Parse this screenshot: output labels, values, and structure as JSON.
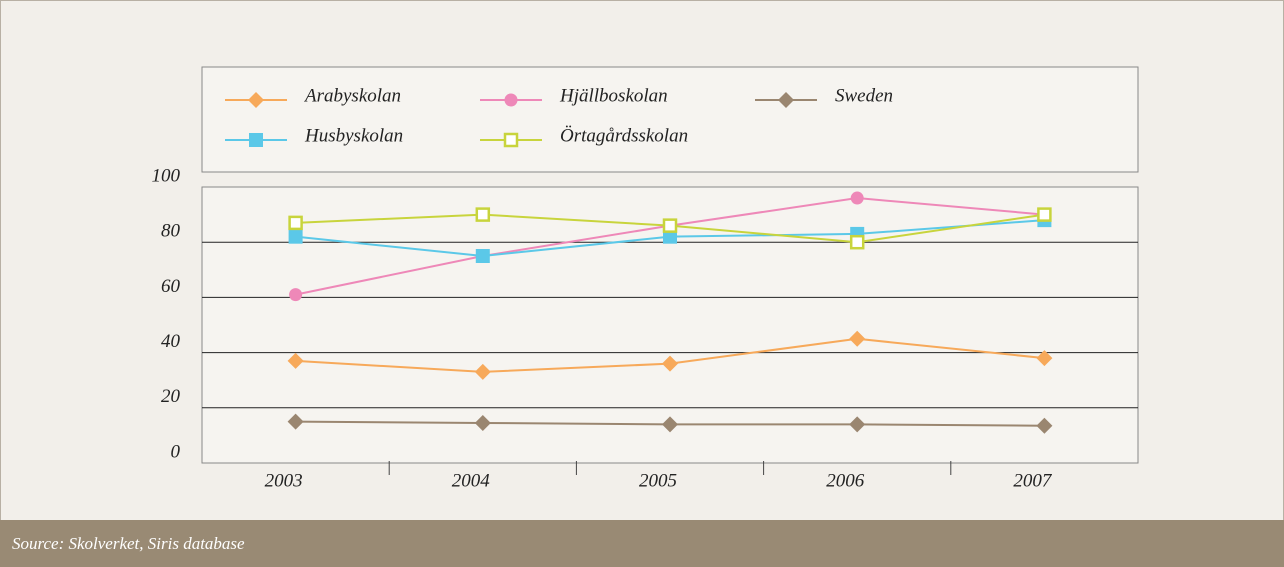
{
  "chart_data": {
    "type": "line",
    "categories": [
      "2003",
      "2004",
      "2005",
      "2006",
      "2007"
    ],
    "series": [
      {
        "name": "Arabyskolan",
        "color": "#f7a95a",
        "marker": "diamond",
        "values": [
          37,
          33,
          36,
          45,
          38
        ]
      },
      {
        "name": "Hjällboskolan",
        "color": "#ee88b8",
        "marker": "circle",
        "values": [
          61,
          75,
          86,
          96,
          90
        ]
      },
      {
        "name": "Sweden",
        "color": "#9a8670",
        "marker": "diamond",
        "values": [
          15,
          14.5,
          14,
          14,
          13.5
        ]
      },
      {
        "name": "Husbyskolan",
        "color": "#5bc8e8",
        "marker": "square",
        "values": [
          82,
          75,
          82,
          83,
          88
        ]
      },
      {
        "name": "Örtagårdsskolan",
        "color": "#c8d43c",
        "marker": "open-square",
        "values": [
          87,
          90,
          86,
          80,
          90
        ]
      }
    ],
    "ylim": [
      0,
      100
    ],
    "yticks": [
      0,
      20,
      40,
      60,
      80,
      100
    ],
    "grid": true,
    "legend": "top",
    "source": "Source: Skolverket, Siris database"
  }
}
